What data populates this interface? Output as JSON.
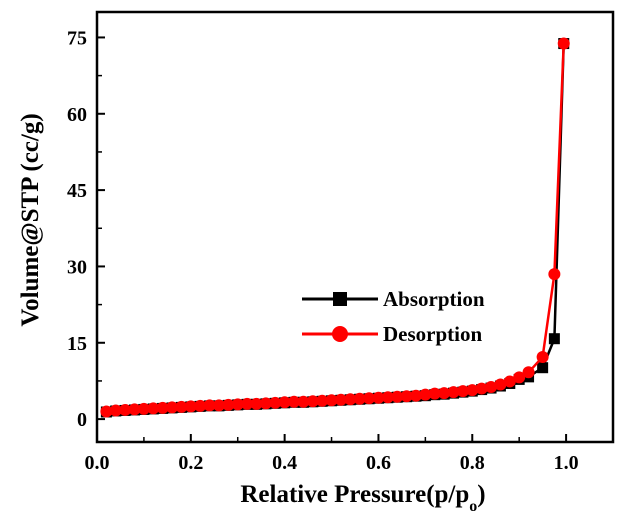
{
  "chart_data": {
    "type": "line",
    "title": "",
    "xlabel": "Relative Pressure(p/p",
    "xlabel_subscript": "o",
    "xlabel_suffix": ")",
    "ylabel": "Volume@STP (cc/g)",
    "xlim": [
      0.0,
      1.1
    ],
    "ylim": [
      -4.5,
      80
    ],
    "grid": false,
    "legend_position": "center-right",
    "x_ticks": [
      0.0,
      0.2,
      0.4,
      0.6,
      0.8,
      1.0
    ],
    "x_tick_labels": [
      "0.0",
      "0.2",
      "0.4",
      "0.6",
      "0.8",
      "1.0"
    ],
    "y_ticks": [
      0,
      15,
      30,
      45,
      60,
      75
    ],
    "y_tick_labels": [
      "0",
      "15",
      "30",
      "45",
      "60",
      "75"
    ],
    "series": [
      {
        "name": "Absorption",
        "color": "#000000",
        "marker": "square",
        "x": [
          0.02,
          0.04,
          0.06,
          0.08,
          0.1,
          0.12,
          0.14,
          0.16,
          0.18,
          0.2,
          0.22,
          0.24,
          0.26,
          0.28,
          0.3,
          0.32,
          0.34,
          0.36,
          0.38,
          0.4,
          0.42,
          0.44,
          0.46,
          0.48,
          0.5,
          0.52,
          0.54,
          0.56,
          0.58,
          0.6,
          0.62,
          0.64,
          0.66,
          0.68,
          0.7,
          0.72,
          0.74,
          0.76,
          0.78,
          0.8,
          0.82,
          0.84,
          0.86,
          0.88,
          0.9,
          0.92,
          0.95,
          0.975,
          0.995
        ],
        "y": [
          1.4,
          1.6,
          1.7,
          1.8,
          1.9,
          2.0,
          2.1,
          2.2,
          2.3,
          2.4,
          2.5,
          2.6,
          2.6,
          2.7,
          2.8,
          2.9,
          2.9,
          3.0,
          3.1,
          3.2,
          3.3,
          3.3,
          3.4,
          3.5,
          3.6,
          3.7,
          3.8,
          3.9,
          4.0,
          4.1,
          4.2,
          4.3,
          4.4,
          4.5,
          4.6,
          4.8,
          4.9,
          5.1,
          5.3,
          5.5,
          5.8,
          6.1,
          6.5,
          7.0,
          7.8,
          8.3,
          10.1,
          15.8,
          73.8
        ]
      },
      {
        "name": "Desorption",
        "color": "#ff0000",
        "marker": "circle",
        "x": [
          0.02,
          0.04,
          0.06,
          0.08,
          0.1,
          0.12,
          0.14,
          0.16,
          0.18,
          0.2,
          0.22,
          0.24,
          0.26,
          0.28,
          0.3,
          0.32,
          0.34,
          0.36,
          0.38,
          0.4,
          0.42,
          0.44,
          0.46,
          0.48,
          0.5,
          0.52,
          0.54,
          0.56,
          0.58,
          0.6,
          0.62,
          0.64,
          0.66,
          0.68,
          0.7,
          0.72,
          0.74,
          0.76,
          0.78,
          0.8,
          0.82,
          0.84,
          0.86,
          0.88,
          0.9,
          0.92,
          0.95,
          0.975,
          0.995
        ],
        "y": [
          1.5,
          1.7,
          1.8,
          1.9,
          2.0,
          2.1,
          2.2,
          2.3,
          2.4,
          2.5,
          2.6,
          2.7,
          2.7,
          2.8,
          2.9,
          3.0,
          3.0,
          3.1,
          3.2,
          3.3,
          3.4,
          3.4,
          3.5,
          3.6,
          3.7,
          3.8,
          3.9,
          4.0,
          4.1,
          4.2,
          4.3,
          4.4,
          4.5,
          4.6,
          4.8,
          5.0,
          5.1,
          5.3,
          5.5,
          5.7,
          6.0,
          6.3,
          6.8,
          7.4,
          8.2,
          9.2,
          12.2,
          28.5,
          73.8
        ]
      }
    ]
  }
}
